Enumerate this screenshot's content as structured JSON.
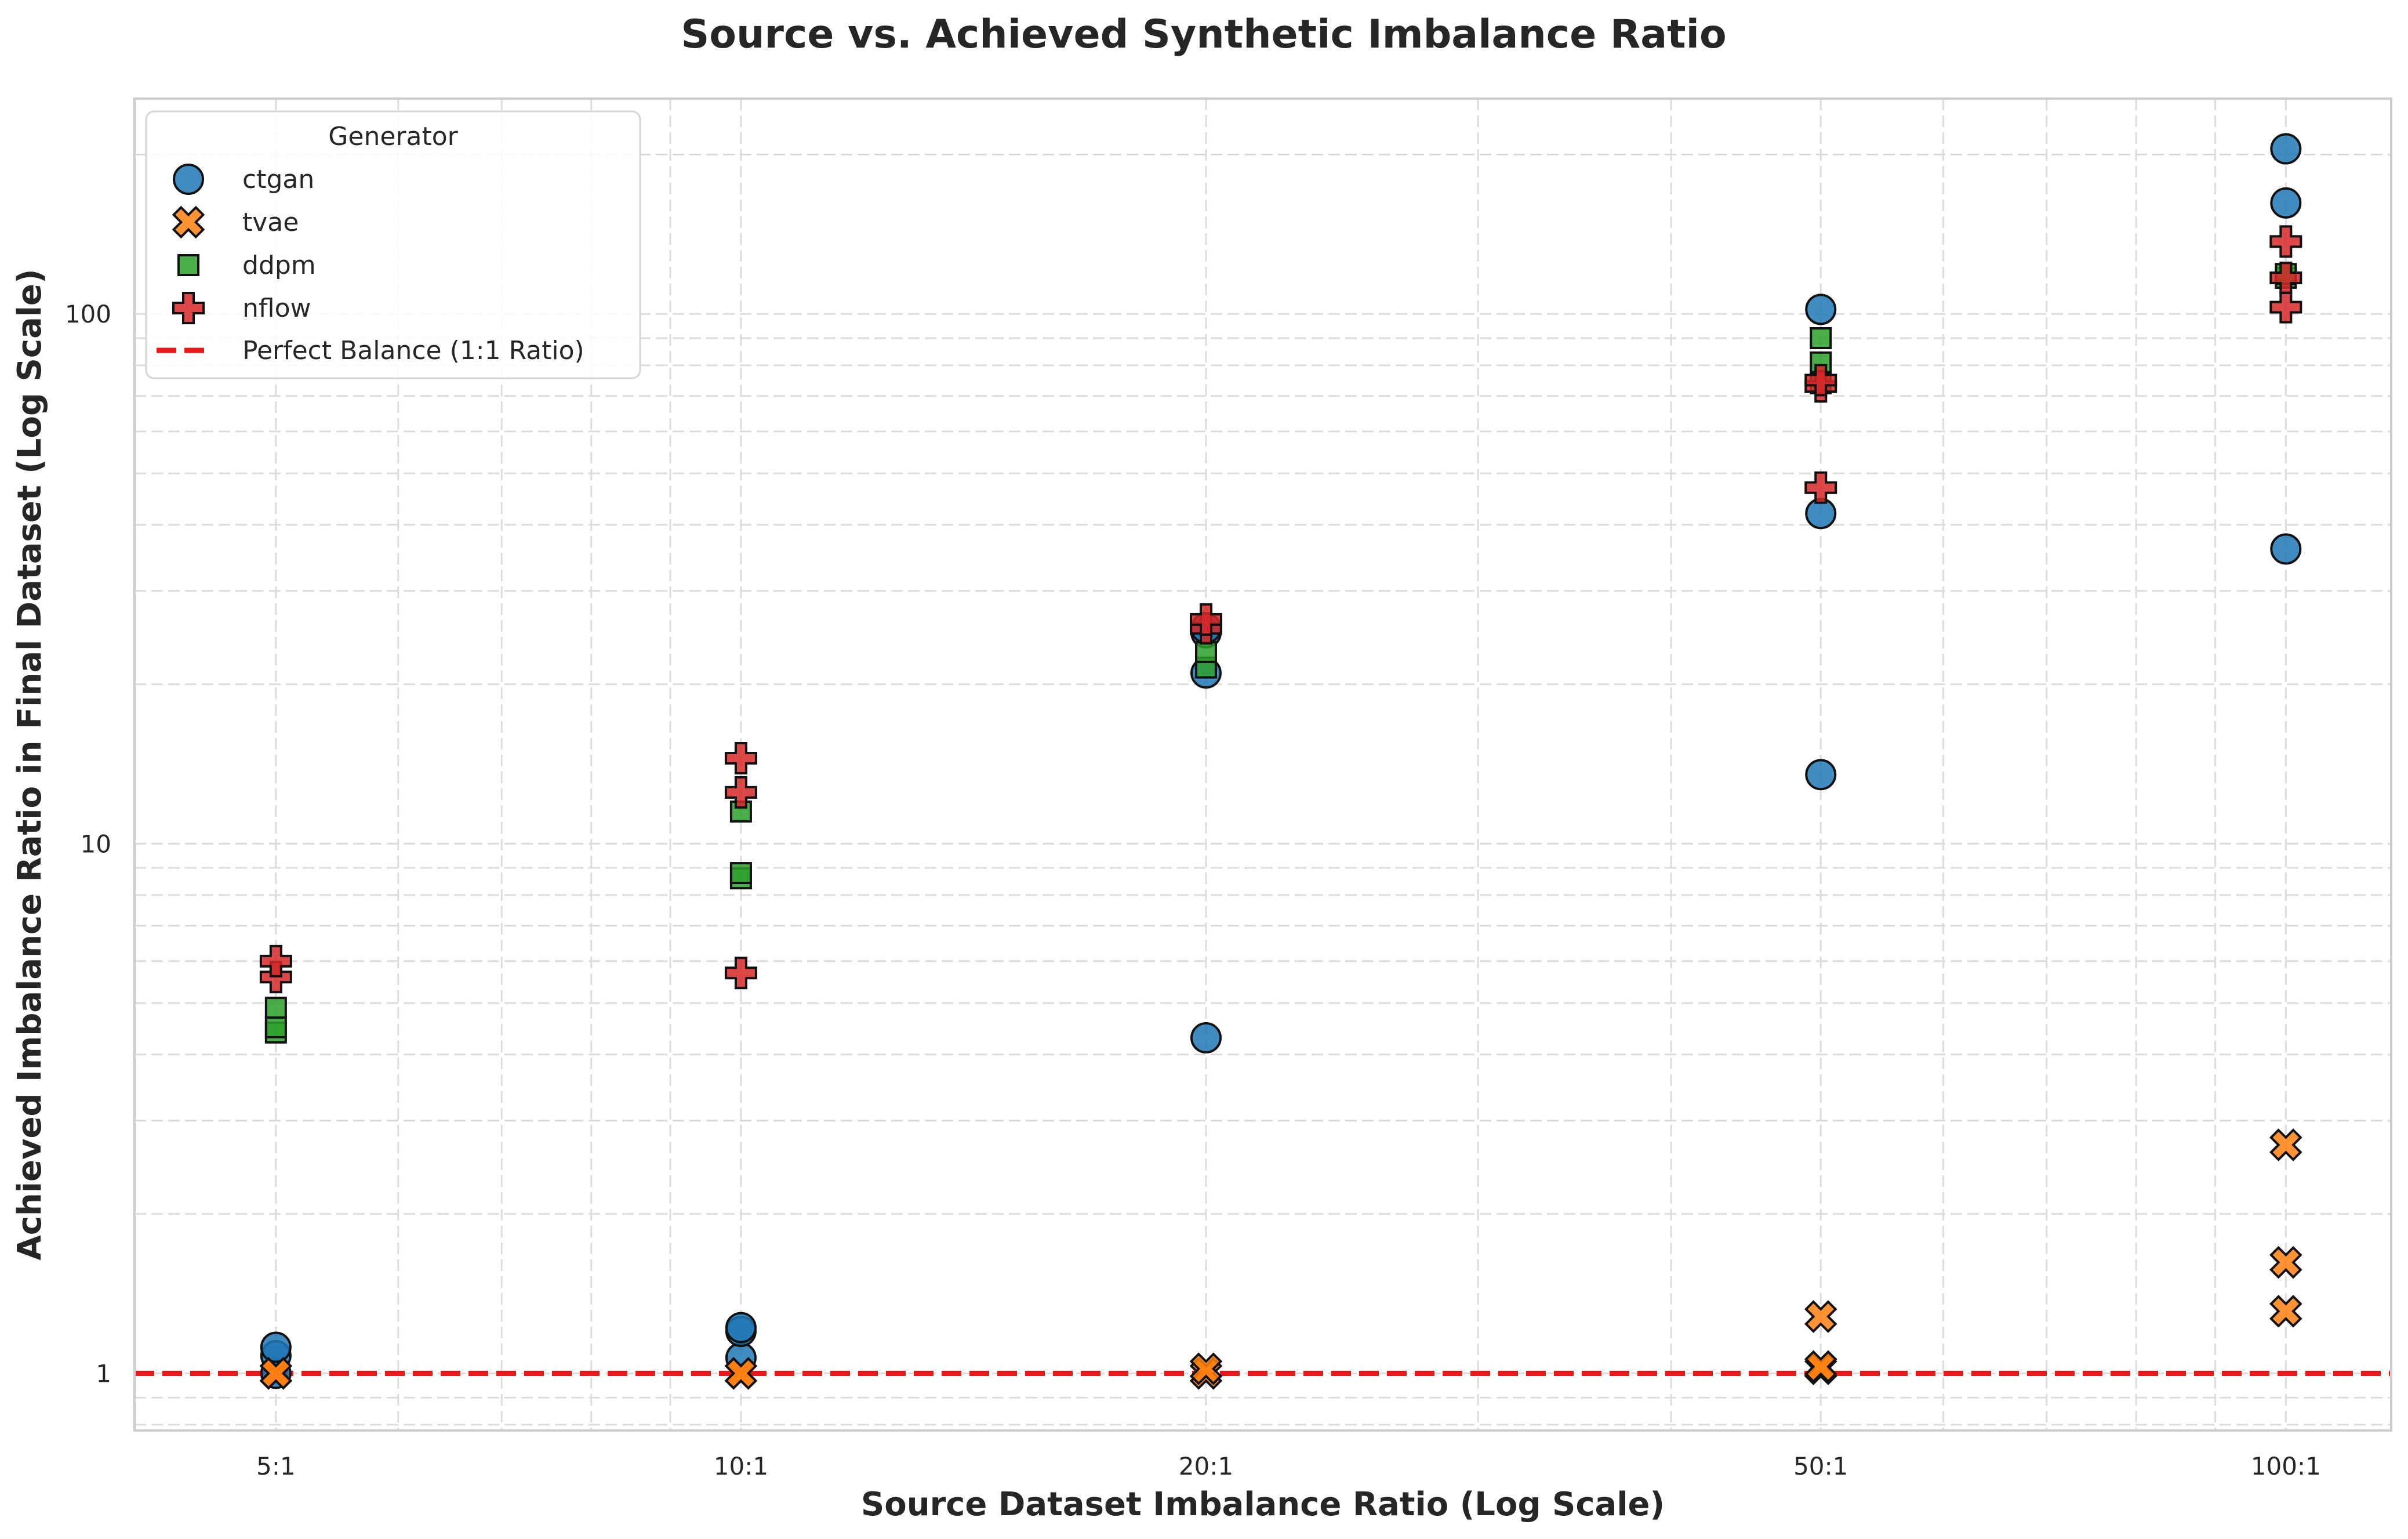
{
  "chart_data": {
    "type": "scatter",
    "title": "Source vs. Achieved Synthetic Imbalance Ratio",
    "xlabel": "Source Dataset Imbalance Ratio (Log Scale)",
    "ylabel": "Achieved Imbalance Ratio in Final Dataset (Log Scale)",
    "x_scale": "log",
    "y_scale": "log",
    "xlim": [
      4.05,
      117
    ],
    "ylim": [
      0.78,
      255
    ],
    "x_ticks": [
      5,
      10,
      20,
      50,
      100
    ],
    "x_tick_labels": [
      "5:1",
      "10:1",
      "20:1",
      "50:1",
      "100:1"
    ],
    "y_ticks": [
      1,
      10,
      100
    ],
    "y_tick_labels": [
      "1",
      "10",
      "100"
    ],
    "grid": true,
    "legend_title": "Generator",
    "legend_position": "top-left",
    "series": [
      {
        "name": "ctgan",
        "color": "#1f77b4",
        "marker": "circle",
        "points": [
          [
            5,
            1.0
          ],
          [
            5,
            1.08
          ],
          [
            5,
            1.12
          ],
          [
            10,
            1.07
          ],
          [
            10,
            1.2
          ],
          [
            10,
            1.22
          ],
          [
            20,
            4.3
          ],
          [
            20,
            21
          ],
          [
            20,
            25
          ],
          [
            20,
            25.5
          ],
          [
            50,
            13.5
          ],
          [
            50,
            42
          ],
          [
            50,
            102
          ],
          [
            100,
            36
          ],
          [
            100,
            162
          ],
          [
            100,
            205
          ]
        ]
      },
      {
        "name": "tvae",
        "color": "#ff7f0e",
        "marker": "x",
        "points": [
          [
            5,
            1.0
          ],
          [
            5,
            1.0
          ],
          [
            10,
            1.0
          ],
          [
            10,
            1.0
          ],
          [
            20,
            1.0
          ],
          [
            20,
            1.02
          ],
          [
            50,
            1.02
          ],
          [
            50,
            1.03
          ],
          [
            50,
            1.28
          ],
          [
            100,
            1.31
          ],
          [
            100,
            1.62
          ],
          [
            100,
            2.7
          ]
        ]
      },
      {
        "name": "ddpm",
        "color": "#2ca02c",
        "marker": "square",
        "points": [
          [
            5,
            4.4
          ],
          [
            5,
            4.5
          ],
          [
            5,
            4.9
          ],
          [
            10,
            8.6
          ],
          [
            10,
            8.8
          ],
          [
            10,
            11.5
          ],
          [
            20,
            21.5
          ],
          [
            20,
            23
          ],
          [
            50,
            74
          ],
          [
            50,
            81
          ],
          [
            50,
            90
          ],
          [
            100,
            117
          ],
          [
            100,
            119
          ]
        ]
      },
      {
        "name": "nflow",
        "color": "#d62728",
        "marker": "plus",
        "points": [
          [
            5,
            5.6
          ],
          [
            5,
            6.0
          ],
          [
            10,
            5.7
          ],
          [
            10,
            12.5
          ],
          [
            10,
            14.5
          ],
          [
            20,
            25.5
          ],
          [
            20,
            26.5
          ],
          [
            50,
            47
          ],
          [
            50,
            73
          ],
          [
            50,
            75
          ],
          [
            100,
            103
          ],
          [
            100,
            117
          ],
          [
            100,
            137
          ]
        ]
      }
    ],
    "reference_line": {
      "name": "Perfect Balance (1:1 Ratio)",
      "y": 1,
      "color": "#e8181b",
      "style": "dashed"
    }
  }
}
